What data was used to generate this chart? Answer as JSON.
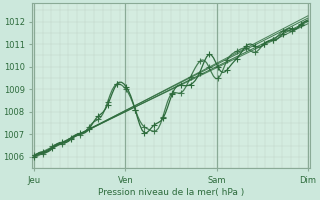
{
  "title": "Pression niveau de la mer( hPa )",
  "bg_color": "#cce8dc",
  "plot_bg_color": "#d4ece0",
  "line_color": "#2d6b3c",
  "dark_line_color": "#1a4a28",
  "ylim": [
    1005.5,
    1012.8
  ],
  "yticks": [
    1006,
    1007,
    1008,
    1009,
    1010,
    1011,
    1012
  ],
  "days": [
    "Jeu",
    "Ven",
    "Sam",
    "Dim"
  ],
  "day_positions": [
    0,
    1,
    2,
    3
  ],
  "figsize": [
    3.2,
    2.0
  ],
  "dpi": 100
}
